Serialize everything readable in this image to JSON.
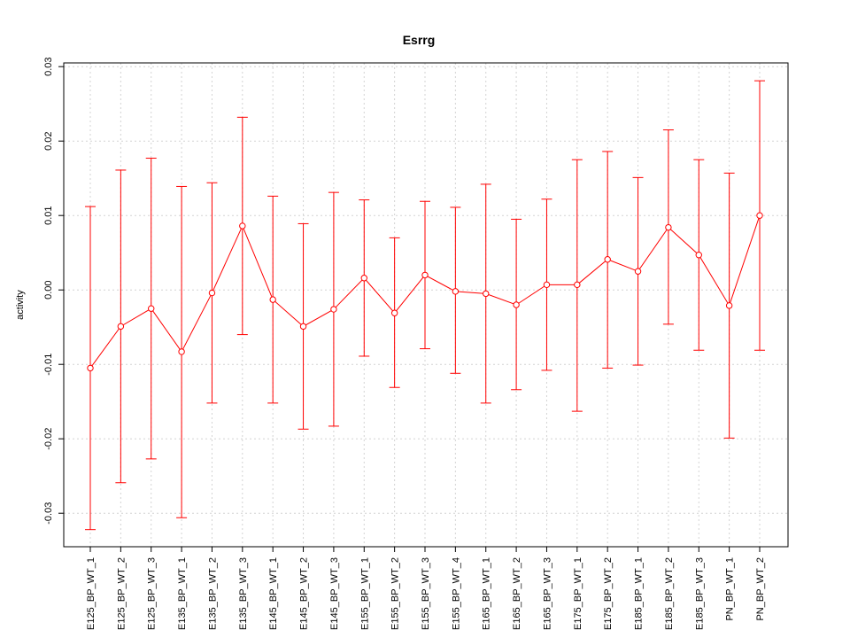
{
  "chart_data": {
    "type": "line",
    "title": "Esrrg",
    "xlabel": "",
    "ylabel": "activity",
    "ylim": [
      -0.0345,
      0.0305
    ],
    "yticks": [
      -0.03,
      -0.02,
      -0.01,
      0.0,
      0.01,
      0.02,
      0.03
    ],
    "ytick_labels": [
      "-0.03",
      "-0.02",
      "-0.01",
      "0.00",
      "0.01",
      "0.02",
      "0.03"
    ],
    "grid": true,
    "categories": [
      "E125_BP_WT_1",
      "E125_BP_WT_2",
      "E125_BP_WT_3",
      "E135_BP_WT_1",
      "E135_BP_WT_2",
      "E135_BP_WT_3",
      "E145_BP_WT_1",
      "E145_BP_WT_2",
      "E145_BP_WT_3",
      "E155_BP_WT_1",
      "E155_BP_WT_2",
      "E155_BP_WT_3",
      "E155_BP_WT_4",
      "E165_BP_WT_1",
      "E165_BP_WT_2",
      "E165_BP_WT_3",
      "E175_BP_WT_1",
      "E175_BP_WT_2",
      "E185_BP_WT_1",
      "E185_BP_WT_2",
      "E185_BP_WT_3",
      "PN_BP_WT_1",
      "PN_BP_WT_2"
    ],
    "series": [
      {
        "color": "#ff0000",
        "values": [
          -0.0105,
          -0.0049,
          -0.0025,
          -0.0083,
          -0.0004,
          0.0086,
          -0.0013,
          -0.0049,
          -0.0026,
          0.0016,
          -0.0031,
          0.002,
          -0.0002,
          -0.0005,
          -0.002,
          0.0007,
          0.0007,
          0.0041,
          0.0025,
          0.0084,
          0.0047,
          -0.0021,
          0.01
        ],
        "upper": [
          0.0112,
          0.0161,
          0.0177,
          0.0139,
          0.0144,
          0.0232,
          0.0126,
          0.0089,
          0.0131,
          0.0121,
          0.007,
          0.0119,
          0.0111,
          0.0142,
          0.0095,
          0.0122,
          0.0175,
          0.0186,
          0.0151,
          0.0215,
          0.0175,
          0.0157,
          0.0281
        ],
        "lower": [
          -0.0322,
          -0.0259,
          -0.0227,
          -0.0306,
          -0.0152,
          -0.006,
          -0.0152,
          -0.0187,
          -0.0183,
          -0.0089,
          -0.0131,
          -0.0079,
          -0.0112,
          -0.0152,
          -0.0134,
          -0.0108,
          -0.0163,
          -0.0105,
          -0.0101,
          -0.0046,
          -0.0081,
          -0.0199,
          -0.0081
        ]
      }
    ]
  }
}
